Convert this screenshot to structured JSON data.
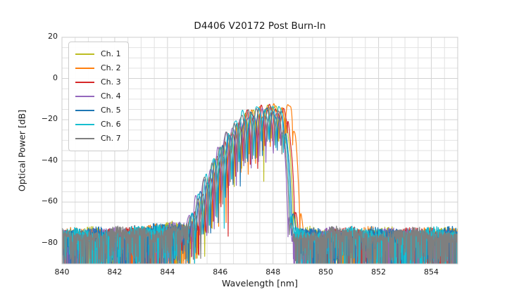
{
  "chart_data": {
    "type": "line",
    "title": "D4406 V20172 Post Burn-In",
    "xlabel": "Wavelength [nm]",
    "ylabel": "Optical Power [dB]",
    "xlim": [
      840,
      855
    ],
    "ylim": [
      -90,
      20
    ],
    "xticks": [
      840,
      842,
      844,
      846,
      848,
      850,
      852,
      854
    ],
    "yticks": [
      20,
      0,
      -20,
      -40,
      -60,
      -80
    ],
    "grid": {
      "on": true,
      "minor_x_step_nm": 0.5,
      "minor_y_step_db": 5,
      "minor_color": "#e2e2e2",
      "major_color": "#d3d3d3",
      "frame_color": "#cccccc"
    },
    "legend": {
      "position": "upper left",
      "entries": [
        "Ch. 1",
        "Ch. 2",
        "Ch. 3",
        "Ch. 4",
        "Ch. 5",
        "Ch. 6",
        "Ch. 7"
      ]
    },
    "noise_floor_db": -76,
    "noise_floor_top_db": -71,
    "mode_spacing_nm": 0.28,
    "signal_band_nm": [
      844.5,
      849.3
    ],
    "series": [
      {
        "name": "Ch. 1",
        "color": "#bcbd22",
        "center_nm": 848.35,
        "peak_db": -14.0,
        "seed": 11
      },
      {
        "name": "Ch. 2",
        "color": "#ff7f0e",
        "center_nm": 848.6,
        "peak_db": -12.5,
        "seed": 22
      },
      {
        "name": "Ch. 3",
        "color": "#d62728",
        "center_nm": 848.4,
        "peak_db": -13.5,
        "seed": 33
      },
      {
        "name": "Ch. 4",
        "color": "#9467bd",
        "center_nm": 848.15,
        "peak_db": -16.0,
        "seed": 44
      },
      {
        "name": "Ch. 5",
        "color": "#1f77b4",
        "center_nm": 848.3,
        "peak_db": -15.0,
        "seed": 55
      },
      {
        "name": "Ch. 6",
        "color": "#17becf",
        "center_nm": 848.25,
        "peak_db": -13.5,
        "seed": 66
      },
      {
        "name": "Ch. 7",
        "color": "#7f7f7f",
        "center_nm": 848.2,
        "peak_db": -15.0,
        "seed": 77
      }
    ]
  }
}
